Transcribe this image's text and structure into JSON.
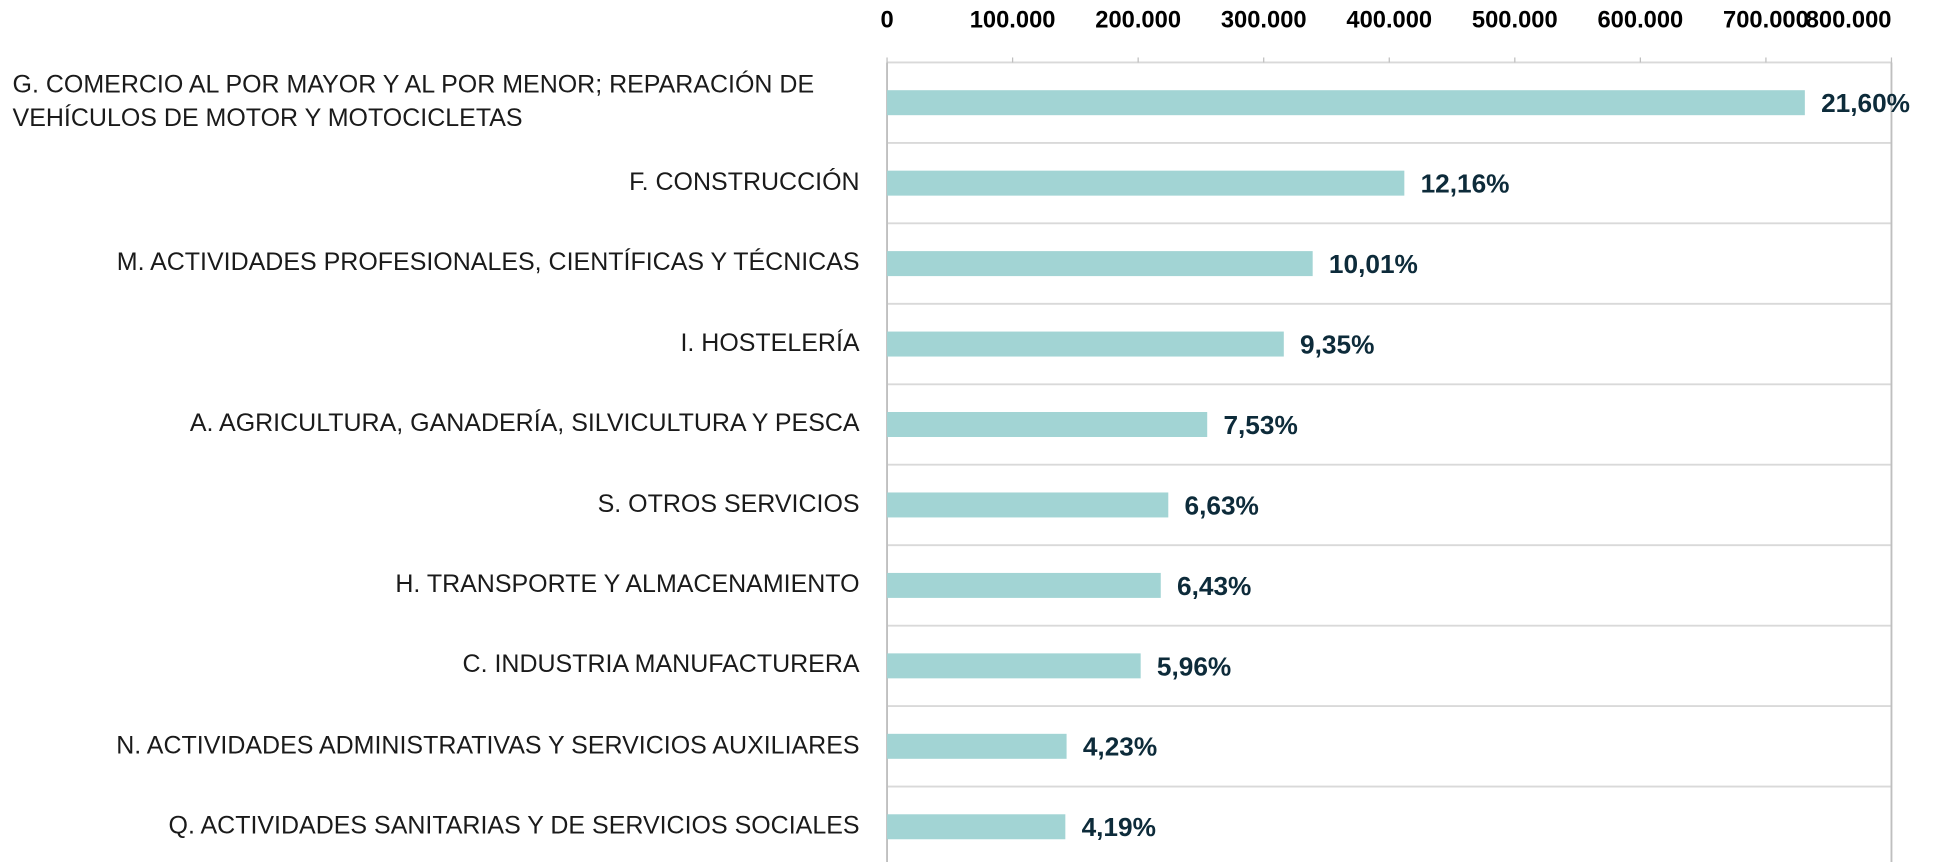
{
  "chart_data": {
    "type": "hbar",
    "categories": [
      "G. COMERCIO AL POR MAYOR Y AL POR MENOR; REPARACIÓN DE VEHÍCULOS DE MOTOR Y MOTOCICLETAS",
      "F. CONSTRUCCIÓN",
      "M. ACTIVIDADES PROFESIONALES, CIENTÍFICAS Y TÉCNICAS",
      "I. HOSTELERÍA",
      "A. AGRICULTURA, GANADERÍA, SILVICULTURA Y PESCA",
      "S. OTROS SERVICIOS",
      "H. TRANSPORTE Y ALMACENAMIENTO",
      "C. INDUSTRIA MANUFACTURERA",
      "N. ACTIVIDADES ADMINISTRATIVAS Y SERVICIOS AUXILIARES",
      "Q. ACTIVIDADES SANITARIAS Y DE SERVICIOS SOCIALES"
    ],
    "values": [
      731000,
      412000,
      339000,
      316000,
      255000,
      224000,
      218000,
      202000,
      143000,
      142000
    ],
    "shares": [
      21.6,
      12.16,
      10.01,
      9.35,
      7.53,
      6.63,
      6.43,
      5.96,
      4.23,
      4.19
    ],
    "share_labels": [
      "21,60%",
      "12,16%",
      "10,01%",
      "9,35%",
      "7,53%",
      "6,63%",
      "6,43%",
      "5,96%",
      "4,23%",
      "4,19%"
    ],
    "color": "#a2d4d4",
    "xlim": [
      0,
      800000
    ],
    "xticks": [
      0,
      {
        "value": 100000,
        "label": "100.000"
      },
      {
        "value": 200000,
        "label": "200.000"
      },
      {
        "value": 300000,
        "label": "300.000"
      },
      {
        "value": 400000,
        "label": "400.000"
      },
      {
        "value": 500000,
        "label": "500.000"
      },
      {
        "value": 600000,
        "label": "600.000"
      },
      {
        "value": 700000,
        "label": "700.000"
      },
      {
        "value": 800000,
        "label": "800.000"
      }
    ],
    "grid": true
  }
}
